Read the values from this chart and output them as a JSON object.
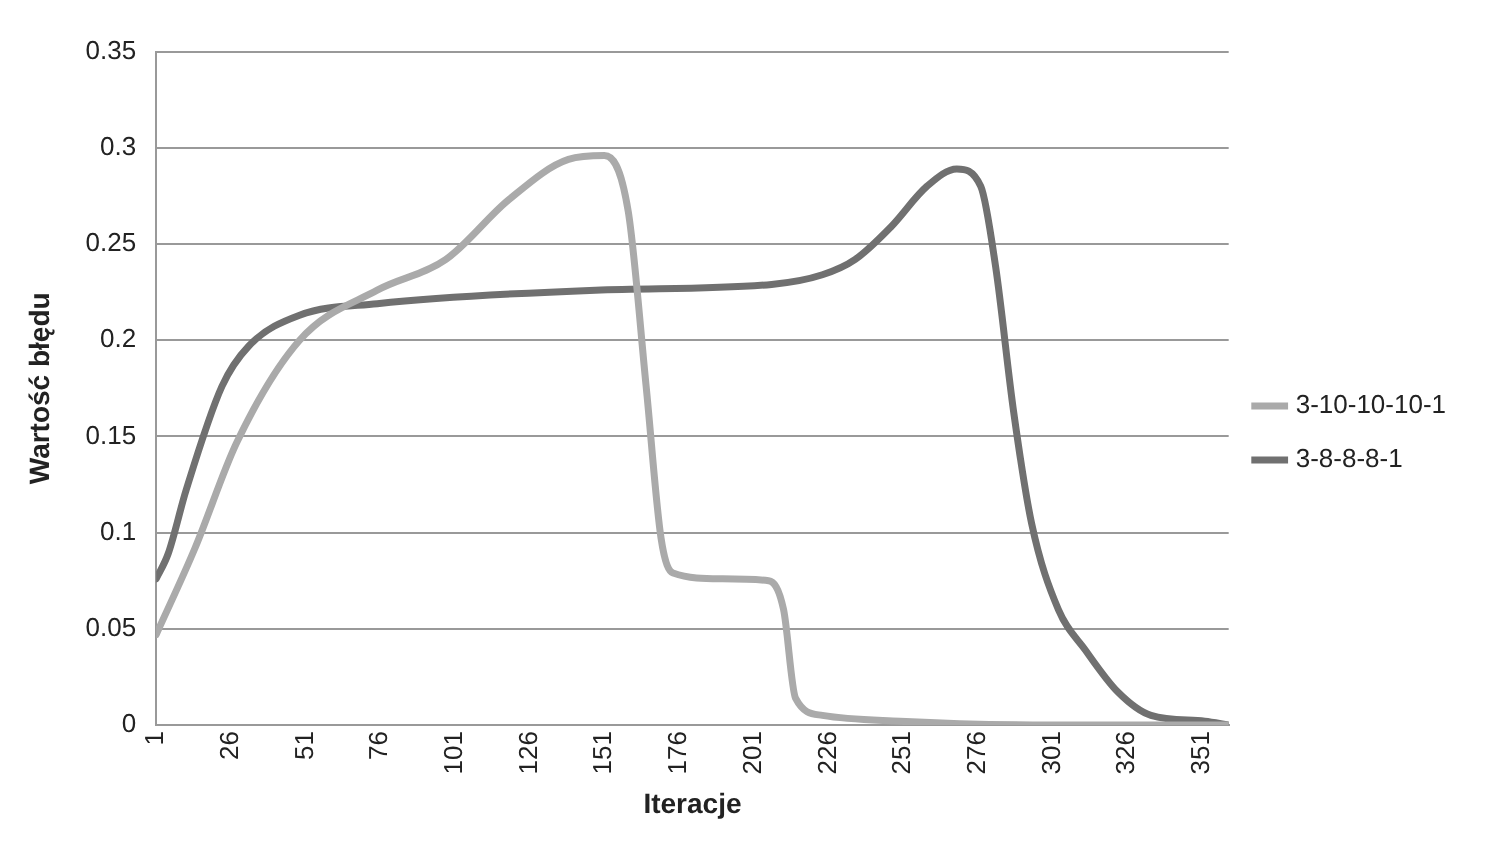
{
  "chart_data": {
    "type": "line",
    "xlabel": "Iteracje",
    "ylabel": "Wartość błędu",
    "xlim": [
      1,
      360
    ],
    "xticks": [
      1,
      26,
      51,
      76,
      101,
      126,
      151,
      176,
      201,
      226,
      251,
      276,
      301,
      326,
      351
    ],
    "ylim": [
      0,
      0.35
    ],
    "yticks": [
      0,
      0.05,
      0.1,
      0.15,
      0.2,
      0.25,
      0.3,
      0.35
    ],
    "grid": "y",
    "legend": "right",
    "marker": "none",
    "line_style": "solid",
    "series": [
      {
        "name": "3-10-10-10-1",
        "color": "#aaaaaa",
        "x": [
          1,
          14,
          28,
          49,
          75,
          98,
          119,
          139,
          151,
          159,
          165,
          170,
          174,
          190,
          206,
          211,
          215,
          224,
          250,
          300,
          360
        ],
        "values": [
          0.047,
          0.092,
          0.147,
          0.2,
          0.226,
          0.242,
          0.273,
          0.294,
          0.296,
          0.267,
          0.176,
          0.097,
          0.079,
          0.076,
          0.075,
          0.06,
          0.014,
          0.005,
          0.002,
          0,
          0
        ]
      },
      {
        "name": "3-8-8-8-1",
        "color": "#707070",
        "x": [
          1,
          5,
          11,
          23,
          32,
          49,
          75,
          148,
          207,
          224,
          235,
          247,
          259,
          269,
          277,
          282,
          288,
          294,
          303,
          312,
          323,
          334,
          352,
          360
        ],
        "values": [
          0.076,
          0.089,
          0.122,
          0.176,
          0.197,
          0.213,
          0.219,
          0.226,
          0.229,
          0.234,
          0.242,
          0.259,
          0.28,
          0.289,
          0.28,
          0.238,
          0.163,
          0.105,
          0.06,
          0.039,
          0.017,
          0.005,
          0.002,
          0
        ]
      }
    ]
  }
}
